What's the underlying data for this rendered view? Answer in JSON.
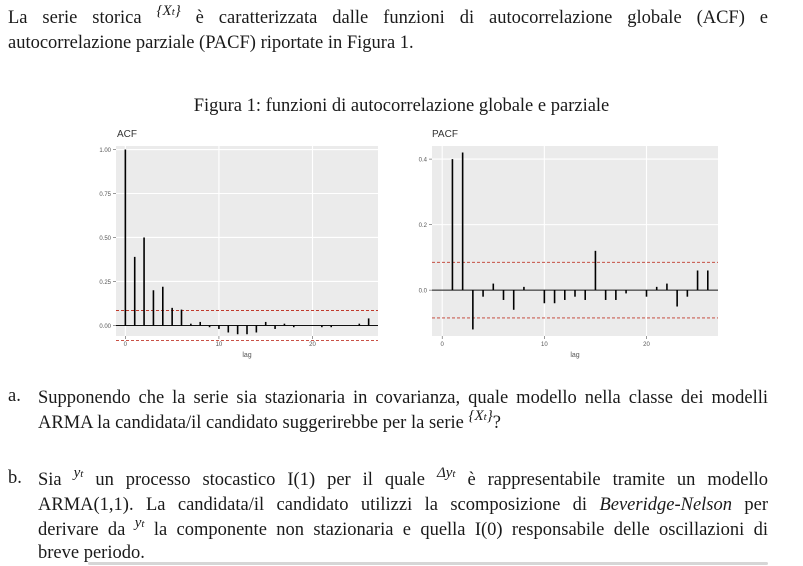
{
  "intro": {
    "line1_a": "La serie storica",
    "series_symbol": "{X",
    "series_sub": "t",
    "series_close": "}",
    "line1_b": "è caratterizzata dalle funzioni di autocorrelazione globale (ACF) e",
    "line2": "autocorrelazione parziale (PACF) riportate in Figura 1."
  },
  "figure": {
    "caption": "Figura 1: funzioni di autocorrelazione globale e parziale"
  },
  "chart_data": [
    {
      "type": "bar",
      "title": "ACF",
      "xlabel": "lag",
      "ylabel": "",
      "x_ticks": [
        "0",
        "10",
        "20"
      ],
      "y_ticks": [
        "0.00",
        "0.25",
        "0.50",
        "0.75",
        "1.00"
      ],
      "xlim": [
        -1,
        27
      ],
      "ylim": [
        -0.06,
        1.02
      ],
      "confidence_band": 0.085,
      "grid": true,
      "lags": [
        0,
        1,
        2,
        3,
        4,
        5,
        6,
        7,
        8,
        9,
        10,
        11,
        12,
        13,
        14,
        15,
        16,
        17,
        18,
        19,
        20,
        21,
        22,
        23,
        24,
        25,
        26
      ],
      "values": [
        1.0,
        0.39,
        0.5,
        0.2,
        0.22,
        0.1,
        0.09,
        0.01,
        0.02,
        -0.01,
        -0.02,
        -0.04,
        -0.05,
        -0.05,
        -0.04,
        0.02,
        -0.02,
        0.01,
        -0.01,
        0.0,
        0.0,
        -0.01,
        -0.01,
        0.0,
        0.0,
        0.01,
        0.04
      ]
    },
    {
      "type": "bar",
      "title": "PACF",
      "xlabel": "lag",
      "ylabel": "",
      "x_ticks": [
        "0",
        "10",
        "20"
      ],
      "y_ticks": [
        "0.0",
        "0.2",
        "0.4"
      ],
      "xlim": [
        -1,
        27
      ],
      "ylim": [
        -0.14,
        0.44
      ],
      "confidence_band": 0.085,
      "grid": true,
      "lags": [
        1,
        2,
        3,
        4,
        5,
        6,
        7,
        8,
        9,
        10,
        11,
        12,
        13,
        14,
        15,
        16,
        17,
        18,
        19,
        20,
        21,
        22,
        23,
        24,
        25,
        26
      ],
      "values": [
        0.4,
        0.42,
        -0.12,
        -0.02,
        0.02,
        -0.03,
        -0.06,
        0.01,
        0.0,
        -0.04,
        -0.04,
        -0.03,
        -0.02,
        -0.03,
        0.12,
        -0.03,
        -0.03,
        -0.01,
        0.0,
        -0.02,
        0.01,
        0.02,
        -0.05,
        -0.02,
        0.06,
        0.06
      ]
    }
  ],
  "question_a": {
    "label": "a.",
    "line1": "Supponendo che la serie sia stazionaria in covarianza, quale modello nella classe dei modelli",
    "line2": "ARMA la candidata/il candidato suggerirebbe per la serie",
    "symbol": "{X",
    "sub": "t",
    "close": "}",
    "end": "?"
  },
  "question_b": {
    "label": "b.",
    "line1_a": "Sia",
    "y_symbol": "y",
    "y_sub": "t",
    "line1_b": "un processo stocastico I(1) per il quale",
    "delta_symbol": "Δy",
    "delta_sub": "t",
    "line1_c": "è rappresentabile tramite un modello",
    "line2_a": "ARMA(1,1). La candidata/il candidato utilizzi la scomposizione di",
    "line2_emph": "Beveridge-Nelson",
    "line2_b": "per",
    "line3_a": "derivare da",
    "line3_b": "la componente non stazionaria e quella I(0) responsabile delle oscillazioni di",
    "line4": "breve periodo."
  }
}
